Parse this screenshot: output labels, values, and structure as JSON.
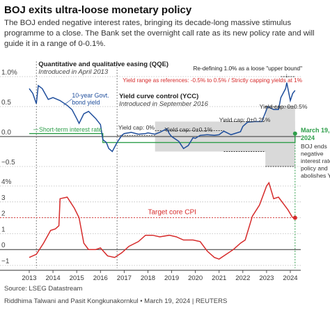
{
  "title": "BOJ exits ultra-loose monetary policy",
  "subtitle": "The BOJ ended negative interest rates, bringing its decade-long massive stimulus programme to a close. The Bank set the overnight call rate as its new policy rate and will guide it in a range of 0-0.1%.",
  "source": "Source: LSEG Datastream",
  "credit": "Riddhima Talwani and Pasit Kongkunakornkul • March 19, 2024 | REUTERS",
  "colors": {
    "yield": "#1f4e9c",
    "short_rate": "#2e9e4a",
    "cpi": "#d62b2b",
    "band": "#d9d9d9",
    "axis": "#555555",
    "grid": "#bbbbbb"
  },
  "chart_data": [
    {
      "type": "line",
      "ylim": [
        -0.5,
        1.0
      ],
      "yticks": [
        1.0,
        0.5,
        0.0,
        -0.5
      ],
      "ytick_labels": [
        "1.0%",
        "0.5",
        "0.0",
        "−0.5"
      ],
      "xlim": [
        2013.0,
        2024.45
      ],
      "series": [
        {
          "name": "10-year Govt. bond yield",
          "x": [
            2013.0,
            2013.15,
            2013.3,
            2013.38,
            2013.55,
            2013.8,
            2014.0,
            2014.3,
            2014.6,
            2014.8,
            2015.0,
            2015.1,
            2015.3,
            2015.5,
            2015.8,
            2016.0,
            2016.1,
            2016.25,
            2016.35,
            2016.5,
            2016.7,
            2016.9,
            2017.0,
            2017.3,
            2017.6,
            2017.9,
            2018.0,
            2018.3,
            2018.5,
            2018.8,
            2018.9,
            2019.0,
            2019.3,
            2019.5,
            2019.7,
            2019.9,
            2020.0,
            2020.2,
            2020.5,
            2020.8,
            2021.0,
            2021.2,
            2021.5,
            2021.9,
            2022.0,
            2022.2,
            2022.5,
            2022.8,
            2022.95,
            2023.05,
            2023.3,
            2023.5,
            2023.6,
            2023.8,
            2023.85,
            2023.95,
            2024.0,
            2024.1,
            2024.2
          ],
          "values": [
            0.8,
            0.72,
            0.55,
            0.85,
            0.8,
            0.62,
            0.65,
            0.6,
            0.52,
            0.45,
            0.3,
            0.22,
            0.38,
            0.42,
            0.3,
            0.2,
            -0.05,
            -0.1,
            -0.2,
            -0.25,
            -0.1,
            0.02,
            0.05,
            0.07,
            0.04,
            0.05,
            0.06,
            0.04,
            0.07,
            0.13,
            0.05,
            0.0,
            -0.08,
            -0.2,
            -0.15,
            -0.02,
            -0.03,
            0.02,
            0.03,
            0.02,
            0.03,
            0.09,
            0.03,
            0.08,
            0.17,
            0.24,
            0.25,
            0.25,
            0.4,
            0.5,
            0.45,
            0.45,
            0.65,
            0.8,
            0.9,
            0.7,
            0.6,
            0.72,
            0.77
          ]
        },
        {
          "name": "Short-term interest rate",
          "x": [
            2013.0,
            2016.1,
            2016.1,
            2024.2,
            2024.2
          ],
          "values": [
            0.05,
            0.05,
            -0.1,
            -0.1,
            0.05
          ]
        }
      ],
      "annotations": [
        {
          "label": "Quantitative and qualitative easing (QQE)",
          "note": "Introduced in April 2013",
          "x": 2013.3
        },
        {
          "label": "Yield curve control (YCC)",
          "note": "Introduced in September 2016",
          "x": 2016.7
        },
        {
          "label": "Yield range as references: -0.5% to 0.5% / Strictly capping yields at 1%",
          "x": 2023.6
        },
        {
          "label": "Re-defining 1.0% as a loose \"upper bound\"",
          "x": 2023.85
        },
        {
          "label": "Yield cap: 0%",
          "x": 2016.7
        },
        {
          "label": "Yield cap: 0±0.1%",
          "x": 2018.0
        },
        {
          "label": "Yield cap: 0±0.25%",
          "x": 2021.0
        },
        {
          "label": "Yield cap: 0±0.5%",
          "x": 2022.95
        },
        {
          "label": "March 19, 2024",
          "note": "BOJ ends negative interest rate policy and abolishes YCC.",
          "x": 2024.2
        }
      ]
    },
    {
      "type": "line",
      "ylim": [
        -1,
        4
      ],
      "yticks": [
        4,
        3,
        2,
        1,
        0,
        -1
      ],
      "ytick_labels": [
        "4%",
        "3",
        "2",
        "1",
        "0",
        "−1"
      ],
      "xticks": [
        2013,
        2014,
        2015,
        2016,
        2017,
        2018,
        2019,
        2020,
        2021,
        2022,
        2023,
        2024
      ],
      "series": [
        {
          "name": "Core CPI",
          "x": [
            2013.0,
            2013.3,
            2013.6,
            2013.9,
            2014.1,
            2014.25,
            2014.3,
            2014.6,
            2014.9,
            2015.1,
            2015.3,
            2015.5,
            2015.8,
            2016.0,
            2016.3,
            2016.6,
            2016.9,
            2017.2,
            2017.6,
            2017.9,
            2018.2,
            2018.5,
            2018.9,
            2019.2,
            2019.5,
            2019.9,
            2020.2,
            2020.5,
            2020.8,
            2021.0,
            2021.3,
            2021.6,
            2021.9,
            2022.1,
            2022.4,
            2022.7,
            2023.0,
            2023.1,
            2023.3,
            2023.5,
            2023.7,
            2023.9,
            2024.1
          ],
          "values": [
            -0.5,
            -0.3,
            0.4,
            1.2,
            1.3,
            1.5,
            3.2,
            3.3,
            2.6,
            2.0,
            0.4,
            0.0,
            0.0,
            0.1,
            -0.4,
            -0.5,
            -0.2,
            0.2,
            0.5,
            0.9,
            0.9,
            0.8,
            0.9,
            0.8,
            0.6,
            0.6,
            0.5,
            -0.1,
            -0.5,
            -0.6,
            -0.3,
            0.0,
            0.4,
            0.6,
            2.1,
            2.8,
            4.0,
            4.2,
            3.2,
            3.3,
            2.9,
            2.5,
            2.0
          ]
        }
      ],
      "reference_line": {
        "label": "Target core CPI",
        "value": 2
      }
    }
  ]
}
